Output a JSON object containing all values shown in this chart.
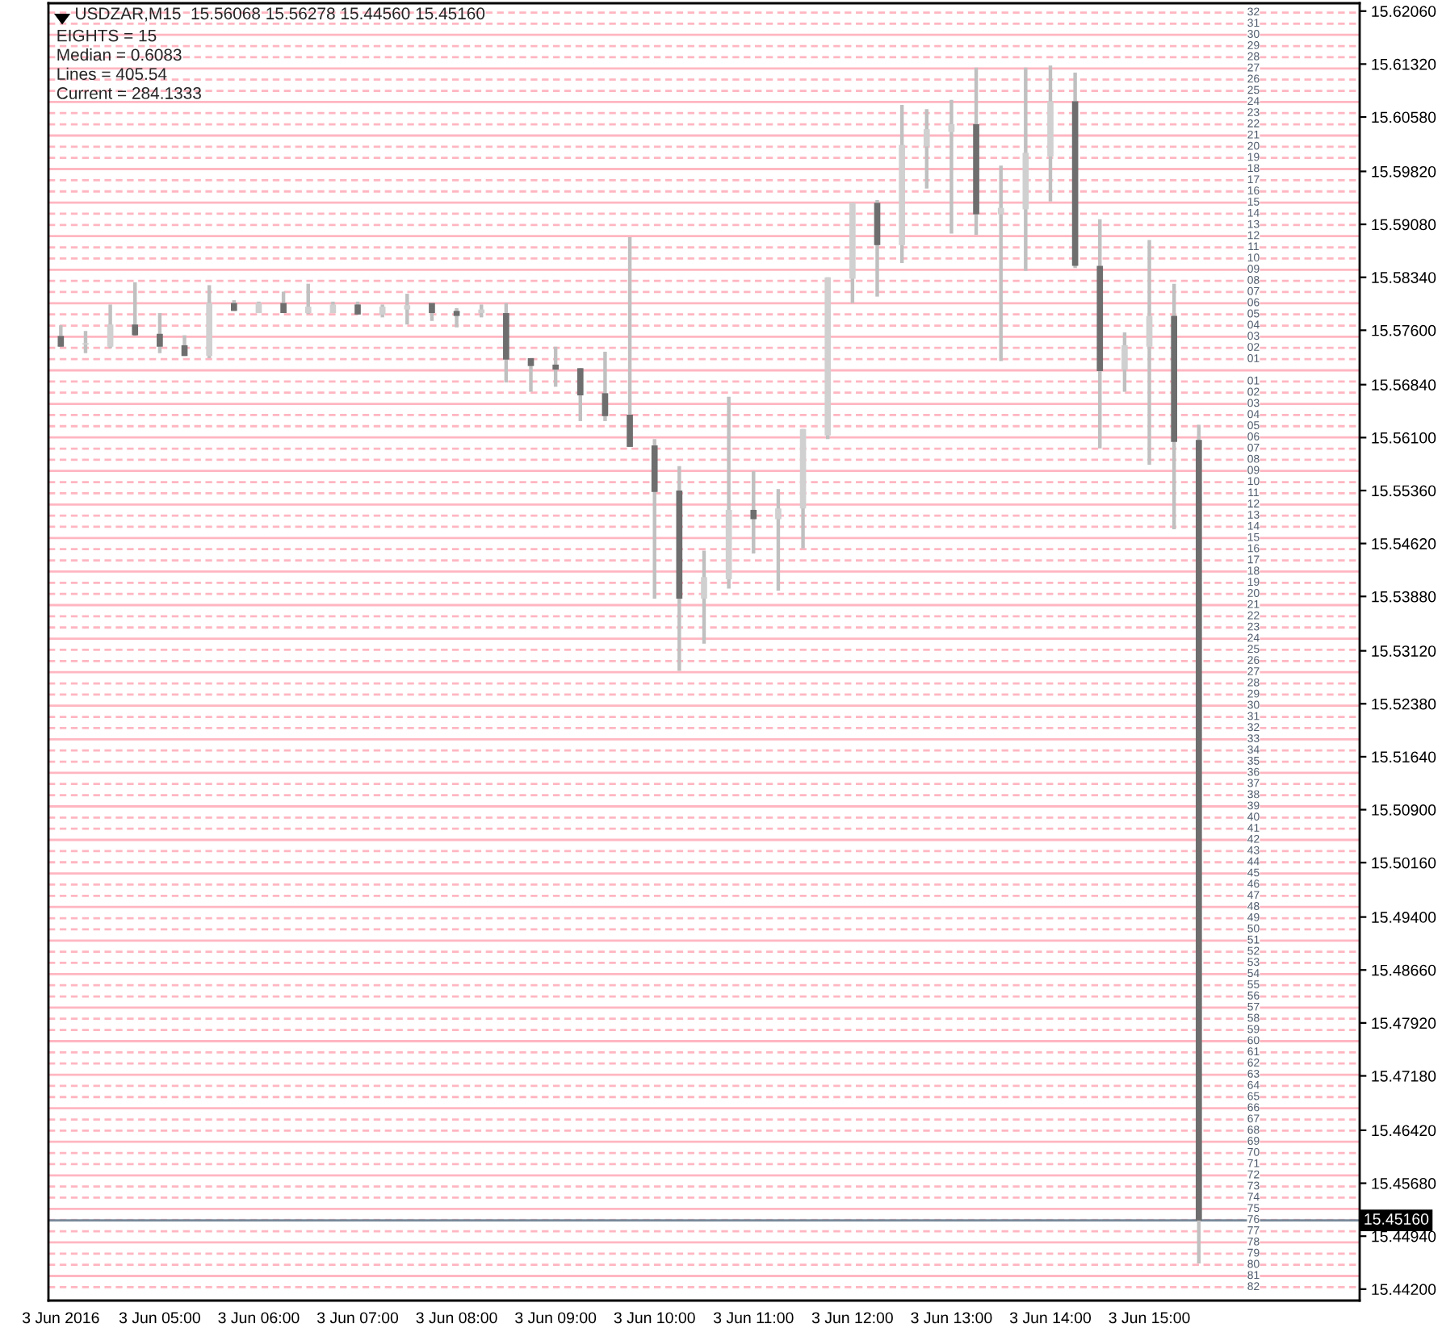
{
  "chart_data": {
    "type": "candlestick",
    "title": "USDZAR,M15  15.56068 15.56278 15.44560 15.45160",
    "annotations": [
      "EIGHTS = 15",
      "Median = 0.6083",
      "Lines = 405.54",
      "Current = 284.1333",
      {
        "text": "32",
        "y": 15.6204
      },
      {
        "text": "31",
        "y": 15.61884
      },
      {
        "text": "30",
        "y": 15.61728
      },
      {
        "text": "29",
        "y": 15.61571
      },
      {
        "text": "28",
        "y": 15.61415
      },
      {
        "text": "27",
        "y": 15.61259
      },
      {
        "text": "26",
        "y": 15.61103
      },
      {
        "text": "25",
        "y": 15.60946
      },
      {
        "text": "24",
        "y": 15.6079
      },
      {
        "text": "23",
        "y": 15.60634
      },
      {
        "text": "22",
        "y": 15.60478
      },
      {
        "text": "21",
        "y": 15.60321
      },
      {
        "text": "20",
        "y": 15.60165
      },
      {
        "text": "19",
        "y": 15.60009
      },
      {
        "text": "18",
        "y": 15.59853
      },
      {
        "text": "17",
        "y": 15.59696
      },
      {
        "text": "16",
        "y": 15.5954
      },
      {
        "text": "15",
        "y": 15.59384
      },
      {
        "text": "14",
        "y": 15.59228
      },
      {
        "text": "13",
        "y": 15.59071
      },
      {
        "text": "12",
        "y": 15.58915
      },
      {
        "text": "11",
        "y": 15.58759
      },
      {
        "text": "10",
        "y": 15.58603
      },
      {
        "text": "09",
        "y": 15.58446
      },
      {
        "text": "08",
        "y": 15.5829
      },
      {
        "text": "07",
        "y": 15.58134
      },
      {
        "text": "06",
        "y": 15.57978
      },
      {
        "text": "05",
        "y": 15.57821
      },
      {
        "text": "04",
        "y": 15.57665
      },
      {
        "text": "03",
        "y": 15.57509
      },
      {
        "text": "02",
        "y": 15.57353
      },
      {
        "text": "01",
        "y": 15.57196
      },
      {
        "text": "01",
        "y": 15.56884
      },
      {
        "text": "02",
        "y": 15.56728
      },
      {
        "text": "03",
        "y": 15.56571
      },
      {
        "text": "04",
        "y": 15.56415
      },
      {
        "text": "05",
        "y": 15.56259
      },
      {
        "text": "06",
        "y": 15.56103
      },
      {
        "text": "07",
        "y": 15.55946
      },
      {
        "text": "08",
        "y": 15.5579
      },
      {
        "text": "09",
        "y": 15.55634
      },
      {
        "text": "10",
        "y": 15.55478
      },
      {
        "text": "11",
        "y": 15.55321
      },
      {
        "text": "12",
        "y": 15.55165
      },
      {
        "text": "13",
        "y": 15.55009
      },
      {
        "text": "14",
        "y": 15.54853
      },
      {
        "text": "15",
        "y": 15.54696
      },
      {
        "text": "16",
        "y": 15.5454
      },
      {
        "text": "17",
        "y": 15.54384
      },
      {
        "text": "18",
        "y": 15.54228
      },
      {
        "text": "19",
        "y": 15.54071
      },
      {
        "text": "20",
        "y": 15.53915
      },
      {
        "text": "21",
        "y": 15.53759
      },
      {
        "text": "22",
        "y": 15.53603
      },
      {
        "text": "23",
        "y": 15.53446
      },
      {
        "text": "24",
        "y": 15.5329
      },
      {
        "text": "25",
        "y": 15.53134
      },
      {
        "text": "26",
        "y": 15.52978
      },
      {
        "text": "27",
        "y": 15.52821
      },
      {
        "text": "28",
        "y": 15.52665
      },
      {
        "text": "29",
        "y": 15.52509
      },
      {
        "text": "30",
        "y": 15.52353
      },
      {
        "text": "31",
        "y": 15.52196
      },
      {
        "text": "32",
        "y": 15.5204
      },
      {
        "text": "33",
        "y": 15.51884
      },
      {
        "text": "34",
        "y": 15.51728
      },
      {
        "text": "35",
        "y": 15.51571
      },
      {
        "text": "36",
        "y": 15.51415
      },
      {
        "text": "37",
        "y": 15.51259
      },
      {
        "text": "38",
        "y": 15.51103
      },
      {
        "text": "39",
        "y": 15.50946
      },
      {
        "text": "40",
        "y": 15.5079
      },
      {
        "text": "41",
        "y": 15.50634
      },
      {
        "text": "42",
        "y": 15.50478
      },
      {
        "text": "43",
        "y": 15.50321
      },
      {
        "text": "44",
        "y": 15.50165
      },
      {
        "text": "45",
        "y": 15.50009
      },
      {
        "text": "46",
        "y": 15.49853
      },
      {
        "text": "47",
        "y": 15.49696
      },
      {
        "text": "48",
        "y": 15.4954
      },
      {
        "text": "49",
        "y": 15.49384
      },
      {
        "text": "50",
        "y": 15.49228
      },
      {
        "text": "51",
        "y": 15.49071
      },
      {
        "text": "52",
        "y": 15.48915
      },
      {
        "text": "53",
        "y": 15.48759
      },
      {
        "text": "54",
        "y": 15.48603
      },
      {
        "text": "55",
        "y": 15.48446
      },
      {
        "text": "56",
        "y": 15.4829
      },
      {
        "text": "57",
        "y": 15.48134
      },
      {
        "text": "58",
        "y": 15.47978
      },
      {
        "text": "59",
        "y": 15.47821
      },
      {
        "text": "60",
        "y": 15.47665
      },
      {
        "text": "61",
        "y": 15.47509
      },
      {
        "text": "62",
        "y": 15.47353
      },
      {
        "text": "63",
        "y": 15.47196
      },
      {
        "text": "64",
        "y": 15.4704
      },
      {
        "text": "65",
        "y": 15.46884
      },
      {
        "text": "66",
        "y": 15.46728
      },
      {
        "text": "67",
        "y": 15.46571
      },
      {
        "text": "68",
        "y": 15.46415
      },
      {
        "text": "69",
        "y": 15.46259
      },
      {
        "text": "70",
        "y": 15.46103
      },
      {
        "text": "71",
        "y": 15.45946
      },
      {
        "text": "72",
        "y": 15.4579
      },
      {
        "text": "73",
        "y": 15.45634
      },
      {
        "text": "74",
        "y": 15.45478
      },
      {
        "text": "75",
        "y": 15.45321
      },
      {
        "text": "76",
        "y": 15.45165
      },
      {
        "text": "77",
        "y": 15.45009
      },
      {
        "text": "78",
        "y": 15.44853
      },
      {
        "text": "79",
        "y": 15.44696
      },
      {
        "text": "80",
        "y": 15.4454
      },
      {
        "text": "81",
        "y": 15.44384
      },
      {
        "text": "82",
        "y": 15.44228
      }
    ],
    "categories": [
      "3 Jun 2016",
      null,
      null,
      null,
      "3 Jun 05:00",
      null,
      null,
      null,
      "3 Jun 06:00",
      null,
      null,
      null,
      "3 Jun 07:00",
      null,
      null,
      null,
      "3 Jun 08:00",
      null,
      null,
      null,
      "3 Jun 09:00",
      null,
      null,
      null,
      "3 Jun 10:00",
      null,
      null,
      null,
      "3 Jun 11:00",
      null,
      null,
      null,
      "3 Jun 12:00",
      null,
      null,
      null,
      "3 Jun 13:00",
      null,
      null,
      null,
      "3 Jun 14:00",
      null,
      null,
      null,
      "3 Jun 15:00",
      null,
      null,
      null,
      null,
      null,
      null,
      null,
      null
    ],
    "ohlc": [
      [
        15.5752,
        15.5767,
        15.5737,
        15.5737
      ],
      [
        15.574,
        15.5759,
        15.5728,
        15.5742
      ],
      [
        15.5737,
        15.5796,
        15.5735,
        15.5768
      ],
      [
        15.5768,
        15.5827,
        15.5752,
        15.5753
      ],
      [
        15.5755,
        15.5784,
        15.5728,
        15.5737
      ],
      [
        15.5739,
        15.5753,
        15.5724,
        15.5724
      ],
      [
        15.5724,
        15.5823,
        15.5721,
        15.5798
      ],
      [
        15.5798,
        15.5802,
        15.5787,
        15.5787
      ],
      [
        15.5784,
        15.58,
        15.5784,
        15.5798
      ],
      [
        15.5798,
        15.5814,
        15.5784,
        15.5784
      ],
      [
        15.5784,
        15.5825,
        15.5783,
        15.5793
      ],
      [
        15.5784,
        15.58,
        15.5784,
        15.5796
      ],
      [
        15.5796,
        15.58,
        15.5782,
        15.5782
      ],
      [
        15.5782,
        15.5796,
        15.5778,
        15.5793
      ],
      [
        15.5789,
        15.5811,
        15.5768,
        15.5795
      ],
      [
        15.5798,
        15.5798,
        15.5773,
        15.5784
      ],
      [
        15.5787,
        15.5791,
        15.5764,
        15.578
      ],
      [
        15.5784,
        15.5796,
        15.5778,
        15.5789
      ],
      [
        15.5784,
        15.5798,
        15.5687,
        15.5719
      ],
      [
        15.5721,
        15.5721,
        15.5674,
        15.571
      ],
      [
        15.5712,
        15.5737,
        15.5681,
        15.5705
      ],
      [
        15.5707,
        15.5707,
        15.5633,
        15.5669
      ],
      [
        15.5672,
        15.573,
        15.5633,
        15.564
      ],
      [
        15.5642,
        15.589,
        15.5597,
        15.5597
      ],
      [
        15.5599,
        15.5608,
        15.5385,
        15.5534
      ],
      [
        15.5536,
        15.557,
        15.5284,
        15.5385
      ],
      [
        15.5385,
        15.5452,
        15.5322,
        15.5415
      ],
      [
        15.5412,
        15.5667,
        15.5399,
        15.5509
      ],
      [
        15.5509,
        15.5563,
        15.5448,
        15.5496
      ],
      [
        15.5496,
        15.5538,
        15.5396,
        15.5511
      ],
      [
        15.5511,
        15.5622,
        15.5455,
        15.5622
      ],
      [
        15.5613,
        15.5834,
        15.5608,
        15.5834
      ],
      [
        15.5832,
        15.5938,
        15.5798,
        15.5938
      ],
      [
        15.5938,
        15.5942,
        15.5807,
        15.5879
      ],
      [
        15.5879,
        15.6075,
        15.5854,
        15.6019
      ],
      [
        15.6017,
        15.6069,
        15.5958,
        15.6041
      ],
      [
        15.6037,
        15.6082,
        15.5895,
        15.6048
      ],
      [
        15.6048,
        15.6127,
        15.5893,
        15.5922
      ],
      [
        15.5922,
        15.599,
        15.5717,
        15.5931
      ],
      [
        15.5929,
        15.6127,
        15.5843,
        15.6008
      ],
      [
        15.6003,
        15.613,
        15.594,
        15.608
      ],
      [
        15.608,
        15.612,
        15.5847,
        15.585
      ],
      [
        15.585,
        15.5915,
        15.5595,
        15.5703
      ],
      [
        15.5705,
        15.5757,
        15.5674,
        15.5739
      ],
      [
        15.5737,
        15.5886,
        15.5572,
        15.578
      ],
      [
        15.578,
        15.5825,
        15.5482,
        15.5604
      ],
      [
        15.56068,
        15.56278,
        15.4456,
        15.4516
      ],
      null,
      null,
      null,
      null,
      null,
      null
    ],
    "colors": [
      "#6e6e6e",
      "#d0d0d0",
      "#d0d0d0",
      "#6e6e6e",
      "#6e6e6e",
      "#6e6e6e",
      "#d0d0d0",
      "#6e6e6e",
      "#d0d0d0",
      "#6e6e6e",
      "#d0d0d0",
      "#d0d0d0",
      "#6e6e6e",
      "#d0d0d0",
      "#d0d0d0",
      "#6e6e6e",
      "#6e6e6e",
      "#d0d0d0",
      "#6e6e6e",
      "#6e6e6e",
      "#6e6e6e",
      "#6e6e6e",
      "#6e6e6e",
      "#6e6e6e",
      "#6e6e6e",
      "#6e6e6e",
      "#d0d0d0",
      "#d0d0d0",
      "#6e6e6e",
      "#d0d0d0",
      "#d0d0d0",
      "#d0d0d0",
      "#d0d0d0",
      "#6e6e6e",
      "#d0d0d0",
      "#d0d0d0",
      "#d0d0d0",
      "#6e6e6e",
      "#d0d0d0",
      "#d0d0d0",
      "#d0d0d0",
      "#6e6e6e",
      "#6e6e6e",
      "#d0d0d0",
      "#d0d0d0",
      "#6e6e6e",
      "#6e6e6e",
      null,
      null,
      null,
      null,
      null,
      null
    ],
    "ylim": [
      15.4404,
      15.6217
    ],
    "yticks": [
      {
        "value": 15.6206,
        "label": "15.62060"
      },
      {
        "value": 15.6132,
        "label": "15.61320"
      },
      {
        "value": 15.6058,
        "label": "15.60580"
      },
      {
        "value": 15.5982,
        "label": "15.59820"
      },
      {
        "value": 15.5908,
        "label": "15.59080"
      },
      {
        "value": 15.5834,
        "label": "15.58340"
      },
      {
        "value": 15.576,
        "label": "15.57600"
      },
      {
        "value": 15.5684,
        "label": "15.56840"
      },
      {
        "value": 15.561,
        "label": "15.56100"
      },
      {
        "value": 15.5536,
        "label": "15.55360"
      },
      {
        "value": 15.5462,
        "label": "15.54620"
      },
      {
        "value": 15.5388,
        "label": "15.53880"
      },
      {
        "value": 15.5312,
        "label": "15.53120"
      },
      {
        "value": 15.5238,
        "label": "15.52380"
      },
      {
        "value": 15.5164,
        "label": "15.51640"
      },
      {
        "value": 15.509,
        "label": "15.50900"
      },
      {
        "value": 15.5016,
        "label": "15.50160"
      },
      {
        "value": 15.494,
        "label": "15.49400"
      },
      {
        "value": 15.4866,
        "label": "15.48660"
      },
      {
        "value": 15.4792,
        "label": "15.47920"
      },
      {
        "value": 15.4718,
        "label": "15.47180"
      },
      {
        "value": 15.4642,
        "label": "15.46420"
      },
      {
        "value": 15.4568,
        "label": "15.45680"
      },
      {
        "value": 15.4494,
        "label": "15.44940"
      },
      {
        "value": 15.442,
        "label": "15.44200"
      }
    ],
    "ref_lines": [
      {
        "axis": "y",
        "value": 15.6204,
        "color": "#ffb6c1",
        "line_style": "dashed"
      },
      {
        "axis": "y",
        "value": 15.61884,
        "color": "#ffb6c1",
        "line_style": "dashed"
      },
      {
        "axis": "y",
        "value": 15.61728,
        "color": "#ffb6c1",
        "line_style": "solid"
      },
      {
        "axis": "y",
        "value": 15.61571,
        "color": "#ffb6c1",
        "line_style": "dashed"
      },
      {
        "axis": "y",
        "value": 15.61415,
        "color": "#ffb6c1",
        "line_style": "dashed"
      },
      {
        "axis": "y",
        "value": 15.61259,
        "color": "#ffb6c1",
        "line_style": "solid"
      },
      {
        "axis": "y",
        "value": 15.61103,
        "color": "#ffb6c1",
        "line_style": "dashed"
      },
      {
        "axis": "y",
        "value": 15.60946,
        "color": "#ffb6c1",
        "line_style": "dashed"
      },
      {
        "axis": "y",
        "value": 15.6079,
        "color": "#ffb6c1",
        "line_style": "solid"
      },
      {
        "axis": "y",
        "value": 15.60634,
        "color": "#ffb6c1",
        "line_style": "dashed"
      },
      {
        "axis": "y",
        "value": 15.60478,
        "color": "#ffb6c1",
        "line_style": "dashed"
      },
      {
        "axis": "y",
        "value": 15.60321,
        "color": "#ffb6c1",
        "line_style": "solid"
      },
      {
        "axis": "y",
        "value": 15.60165,
        "color": "#ffb6c1",
        "line_style": "dashed"
      },
      {
        "axis": "y",
        "value": 15.60009,
        "color": "#ffb6c1",
        "line_style": "dashed"
      },
      {
        "axis": "y",
        "value": 15.59853,
        "color": "#ffb6c1",
        "line_style": "solid"
      },
      {
        "axis": "y",
        "value": 15.59696,
        "color": "#ffb6c1",
        "line_style": "dashed"
      },
      {
        "axis": "y",
        "value": 15.5954,
        "color": "#ffb6c1",
        "line_style": "dashed"
      },
      {
        "axis": "y",
        "value": 15.59384,
        "color": "#ffb6c1",
        "line_style": "solid"
      },
      {
        "axis": "y",
        "value": 15.59228,
        "color": "#ffb6c1",
        "line_style": "dashed"
      },
      {
        "axis": "y",
        "value": 15.59071,
        "color": "#ffb6c1",
        "line_style": "dashed"
      },
      {
        "axis": "y",
        "value": 15.58915,
        "color": "#ffb6c1",
        "line_style": "solid"
      },
      {
        "axis": "y",
        "value": 15.58759,
        "color": "#ffb6c1",
        "line_style": "dashed"
      },
      {
        "axis": "y",
        "value": 15.58603,
        "color": "#ffb6c1",
        "line_style": "dashed"
      },
      {
        "axis": "y",
        "value": 15.58446,
        "color": "#ffb6c1",
        "line_style": "solid"
      },
      {
        "axis": "y",
        "value": 15.5829,
        "color": "#ffb6c1",
        "line_style": "dashed"
      },
      {
        "axis": "y",
        "value": 15.58134,
        "color": "#ffb6c1",
        "line_style": "dashed"
      },
      {
        "axis": "y",
        "value": 15.57978,
        "color": "#ffb6c1",
        "line_style": "solid"
      },
      {
        "axis": "y",
        "value": 15.57821,
        "color": "#ffb6c1",
        "line_style": "dashed"
      },
      {
        "axis": "y",
        "value": 15.57665,
        "color": "#ffb6c1",
        "line_style": "dashed"
      },
      {
        "axis": "y",
        "value": 15.57509,
        "color": "#ffb6c1",
        "line_style": "solid"
      },
      {
        "axis": "y",
        "value": 15.57353,
        "color": "#ffb6c1",
        "line_style": "dashed"
      },
      {
        "axis": "y",
        "value": 15.57196,
        "color": "#ffb6c1",
        "line_style": "dashed"
      },
      {
        "axis": "y",
        "value": 15.5704,
        "color": "#ffb6c1",
        "line_style": "solid"
      },
      {
        "axis": "y",
        "value": 15.56884,
        "color": "#ffb6c1",
        "line_style": "dashed"
      },
      {
        "axis": "y",
        "value": 15.56728,
        "color": "#ffb6c1",
        "line_style": "dashed"
      },
      {
        "axis": "y",
        "value": 15.56571,
        "color": "#ffb6c1",
        "line_style": "solid"
      },
      {
        "axis": "y",
        "value": 15.56415,
        "color": "#ffb6c1",
        "line_style": "dashed"
      },
      {
        "axis": "y",
        "value": 15.56259,
        "color": "#ffb6c1",
        "line_style": "dashed"
      },
      {
        "axis": "y",
        "value": 15.56103,
        "color": "#ffb6c1",
        "line_style": "solid"
      },
      {
        "axis": "y",
        "value": 15.55946,
        "color": "#ffb6c1",
        "line_style": "dashed"
      },
      {
        "axis": "y",
        "value": 15.5579,
        "color": "#ffb6c1",
        "line_style": "dashed"
      },
      {
        "axis": "y",
        "value": 15.55634,
        "color": "#ffb6c1",
        "line_style": "solid"
      },
      {
        "axis": "y",
        "value": 15.55478,
        "color": "#ffb6c1",
        "line_style": "dashed"
      },
      {
        "axis": "y",
        "value": 15.55321,
        "color": "#ffb6c1",
        "line_style": "dashed"
      },
      {
        "axis": "y",
        "value": 15.55165,
        "color": "#ffb6c1",
        "line_style": "solid"
      },
      {
        "axis": "y",
        "value": 15.55009,
        "color": "#ffb6c1",
        "line_style": "dashed"
      },
      {
        "axis": "y",
        "value": 15.54853,
        "color": "#ffb6c1",
        "line_style": "dashed"
      },
      {
        "axis": "y",
        "value": 15.54696,
        "color": "#ffb6c1",
        "line_style": "solid"
      },
      {
        "axis": "y",
        "value": 15.5454,
        "color": "#ffb6c1",
        "line_style": "dashed"
      },
      {
        "axis": "y",
        "value": 15.54384,
        "color": "#ffb6c1",
        "line_style": "dashed"
      },
      {
        "axis": "y",
        "value": 15.54228,
        "color": "#ffb6c1",
        "line_style": "solid"
      },
      {
        "axis": "y",
        "value": 15.54071,
        "color": "#ffb6c1",
        "line_style": "dashed"
      },
      {
        "axis": "y",
        "value": 15.53915,
        "color": "#ffb6c1",
        "line_style": "dashed"
      },
      {
        "axis": "y",
        "value": 15.53759,
        "color": "#ffb6c1",
        "line_style": "solid"
      },
      {
        "axis": "y",
        "value": 15.53603,
        "color": "#ffb6c1",
        "line_style": "dashed"
      },
      {
        "axis": "y",
        "value": 15.53446,
        "color": "#ffb6c1",
        "line_style": "dashed"
      },
      {
        "axis": "y",
        "value": 15.5329,
        "color": "#ffb6c1",
        "line_style": "solid"
      },
      {
        "axis": "y",
        "value": 15.53134,
        "color": "#ffb6c1",
        "line_style": "dashed"
      },
      {
        "axis": "y",
        "value": 15.52978,
        "color": "#ffb6c1",
        "line_style": "dashed"
      },
      {
        "axis": "y",
        "value": 15.52821,
        "color": "#ffb6c1",
        "line_style": "solid"
      },
      {
        "axis": "y",
        "value": 15.52665,
        "color": "#ffb6c1",
        "line_style": "dashed"
      },
      {
        "axis": "y",
        "value": 15.52509,
        "color": "#ffb6c1",
        "line_style": "dashed"
      },
      {
        "axis": "y",
        "value": 15.52353,
        "color": "#ffb6c1",
        "line_style": "solid"
      },
      {
        "axis": "y",
        "value": 15.52196,
        "color": "#ffb6c1",
        "line_style": "dashed"
      },
      {
        "axis": "y",
        "value": 15.5204,
        "color": "#ffb6c1",
        "line_style": "dashed"
      },
      {
        "axis": "y",
        "value": 15.51884,
        "color": "#ffb6c1",
        "line_style": "solid"
      },
      {
        "axis": "y",
        "value": 15.51728,
        "color": "#ffb6c1",
        "line_style": "dashed"
      },
      {
        "axis": "y",
        "value": 15.51571,
        "color": "#ffb6c1",
        "line_style": "dashed"
      },
      {
        "axis": "y",
        "value": 15.51415,
        "color": "#ffb6c1",
        "line_style": "solid"
      },
      {
        "axis": "y",
        "value": 15.51259,
        "color": "#ffb6c1",
        "line_style": "dashed"
      },
      {
        "axis": "y",
        "value": 15.51103,
        "color": "#ffb6c1",
        "line_style": "dashed"
      },
      {
        "axis": "y",
        "value": 15.50946,
        "color": "#ffb6c1",
        "line_style": "solid"
      },
      {
        "axis": "y",
        "value": 15.5079,
        "color": "#ffb6c1",
        "line_style": "dashed"
      },
      {
        "axis": "y",
        "value": 15.50634,
        "color": "#ffb6c1",
        "line_style": "dashed"
      },
      {
        "axis": "y",
        "value": 15.50478,
        "color": "#ffb6c1",
        "line_style": "solid"
      },
      {
        "axis": "y",
        "value": 15.50321,
        "color": "#ffb6c1",
        "line_style": "dashed"
      },
      {
        "axis": "y",
        "value": 15.50165,
        "color": "#ffb6c1",
        "line_style": "dashed"
      },
      {
        "axis": "y",
        "value": 15.50009,
        "color": "#ffb6c1",
        "line_style": "solid"
      },
      {
        "axis": "y",
        "value": 15.49853,
        "color": "#ffb6c1",
        "line_style": "dashed"
      },
      {
        "axis": "y",
        "value": 15.49696,
        "color": "#ffb6c1",
        "line_style": "dashed"
      },
      {
        "axis": "y",
        "value": 15.4954,
        "color": "#ffb6c1",
        "line_style": "solid"
      },
      {
        "axis": "y",
        "value": 15.49384,
        "color": "#ffb6c1",
        "line_style": "dashed"
      },
      {
        "axis": "y",
        "value": 15.49228,
        "color": "#ffb6c1",
        "line_style": "dashed"
      },
      {
        "axis": "y",
        "value": 15.49071,
        "color": "#ffb6c1",
        "line_style": "solid"
      },
      {
        "axis": "y",
        "value": 15.48915,
        "color": "#ffb6c1",
        "line_style": "dashed"
      },
      {
        "axis": "y",
        "value": 15.48759,
        "color": "#ffb6c1",
        "line_style": "dashed"
      },
      {
        "axis": "y",
        "value": 15.48603,
        "color": "#ffb6c1",
        "line_style": "solid"
      },
      {
        "axis": "y",
        "value": 15.48446,
        "color": "#ffb6c1",
        "line_style": "dashed"
      },
      {
        "axis": "y",
        "value": 15.4829,
        "color": "#ffb6c1",
        "line_style": "dashed"
      },
      {
        "axis": "y",
        "value": 15.48134,
        "color": "#ffb6c1",
        "line_style": "solid"
      },
      {
        "axis": "y",
        "value": 15.47978,
        "color": "#ffb6c1",
        "line_style": "dashed"
      },
      {
        "axis": "y",
        "value": 15.47821,
        "color": "#ffb6c1",
        "line_style": "dashed"
      },
      {
        "axis": "y",
        "value": 15.47665,
        "color": "#ffb6c1",
        "line_style": "solid"
      },
      {
        "axis": "y",
        "value": 15.47509,
        "color": "#ffb6c1",
        "line_style": "dashed"
      },
      {
        "axis": "y",
        "value": 15.47353,
        "color": "#ffb6c1",
        "line_style": "dashed"
      },
      {
        "axis": "y",
        "value": 15.47196,
        "color": "#ffb6c1",
        "line_style": "solid"
      },
      {
        "axis": "y",
        "value": 15.4704,
        "color": "#ffb6c1",
        "line_style": "dashed"
      },
      {
        "axis": "y",
        "value": 15.46884,
        "color": "#ffb6c1",
        "line_style": "dashed"
      },
      {
        "axis": "y",
        "value": 15.46728,
        "color": "#ffb6c1",
        "line_style": "solid"
      },
      {
        "axis": "y",
        "value": 15.46571,
        "color": "#ffb6c1",
        "line_style": "dashed"
      },
      {
        "axis": "y",
        "value": 15.46415,
        "color": "#ffb6c1",
        "line_style": "dashed"
      },
      {
        "axis": "y",
        "value": 15.46259,
        "color": "#ffb6c1",
        "line_style": "solid"
      },
      {
        "axis": "y",
        "value": 15.46103,
        "color": "#ffb6c1",
        "line_style": "dashed"
      },
      {
        "axis": "y",
        "value": 15.45946,
        "color": "#ffb6c1",
        "line_style": "dashed"
      },
      {
        "axis": "y",
        "value": 15.4579,
        "color": "#ffb6c1",
        "line_style": "solid"
      },
      {
        "axis": "y",
        "value": 15.45634,
        "color": "#ffb6c1",
        "line_style": "dashed"
      },
      {
        "axis": "y",
        "value": 15.45478,
        "color": "#ffb6c1",
        "line_style": "dashed"
      },
      {
        "axis": "y",
        "value": 15.45321,
        "color": "#ffb6c1",
        "line_style": "solid"
      },
      {
        "axis": "y",
        "value": 15.45165,
        "color": "#ffb6c1",
        "line_style": "dashed"
      },
      {
        "axis": "y",
        "value": 15.45009,
        "color": "#ffb6c1",
        "line_style": "dashed"
      },
      {
        "axis": "y",
        "value": 15.44853,
        "color": "#ffb6c1",
        "line_style": "solid"
      },
      {
        "axis": "y",
        "value": 15.44696,
        "color": "#ffb6c1",
        "line_style": "dashed"
      },
      {
        "axis": "y",
        "value": 15.4454,
        "color": "#ffb6c1",
        "line_style": "dashed"
      },
      {
        "axis": "y",
        "value": 15.44384,
        "color": "#ffb6c1",
        "line_style": "solid"
      },
      {
        "axis": "y",
        "value": 15.44228,
        "color": "#ffb6c1",
        "line_style": "dashed"
      },
      {
        "axis": "y",
        "value": 15.4516,
        "label": "15.45160",
        "color": "#778899",
        "line_style": "solid"
      }
    ]
  }
}
